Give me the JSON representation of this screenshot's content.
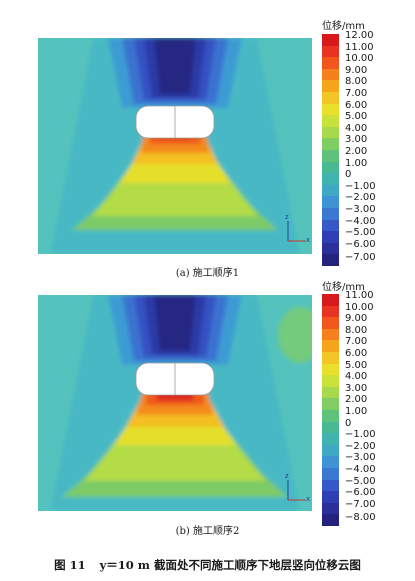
{
  "figure": {
    "caption_number": "图 11",
    "caption_text": "y＝10 m 截面处不同施工顺序下地层竖向位移云图"
  },
  "panels": [
    {
      "subcaption": "(a) 施工顺序1",
      "unit_label": "位移/mm",
      "axis_z": "z",
      "axis_x": "x",
      "legend_ticks": [
        "12.00",
        "11.00",
        "10.00",
        "9.00",
        "8.00",
        "7.00",
        "6.00",
        "5.00",
        "4.00",
        "3.00",
        "2.00",
        "1.00",
        "0",
        "−1.00",
        "−2.00",
        "−3.00",
        "−4.00",
        "−5.00",
        "−6.00",
        "−7.00"
      ],
      "colors": [
        "#d7191c",
        "#e83322",
        "#f2561d",
        "#f6801c",
        "#f7a51d",
        "#f2c625",
        "#e8e02a",
        "#c9e23a",
        "#a6da4c",
        "#80cd63",
        "#5fc27a",
        "#48b992",
        "#3fb3ad",
        "#3fa8c4",
        "#3d93d3",
        "#3a78d2",
        "#3559c6",
        "#2e3fb3",
        "#2b2f9a",
        "#25227e"
      ]
    },
    {
      "subcaption": "(b) 施工顺序2",
      "unit_label": "位移/mm",
      "axis_z": "z",
      "axis_x": "x",
      "legend_ticks": [
        "11.00",
        "10.00",
        "9.00",
        "8.00",
        "7.00",
        "6.00",
        "5.00",
        "4.00",
        "3.00",
        "2.00",
        "1.00",
        "0",
        "−1.00",
        "−2.00",
        "−3.00",
        "−4.00",
        "−5.00",
        "−6.00",
        "−7.00",
        "−8.00"
      ],
      "colors": [
        "#d7191c",
        "#e83322",
        "#f2561d",
        "#f6801c",
        "#f7a51d",
        "#f2c625",
        "#e8e02a",
        "#c9e23a",
        "#a6da4c",
        "#80cd63",
        "#5fc27a",
        "#48b992",
        "#3fb3ad",
        "#3fa8c4",
        "#3d93d3",
        "#3a78d2",
        "#3559c6",
        "#2e3fb3",
        "#2b2f9a",
        "#25227e"
      ]
    }
  ]
}
